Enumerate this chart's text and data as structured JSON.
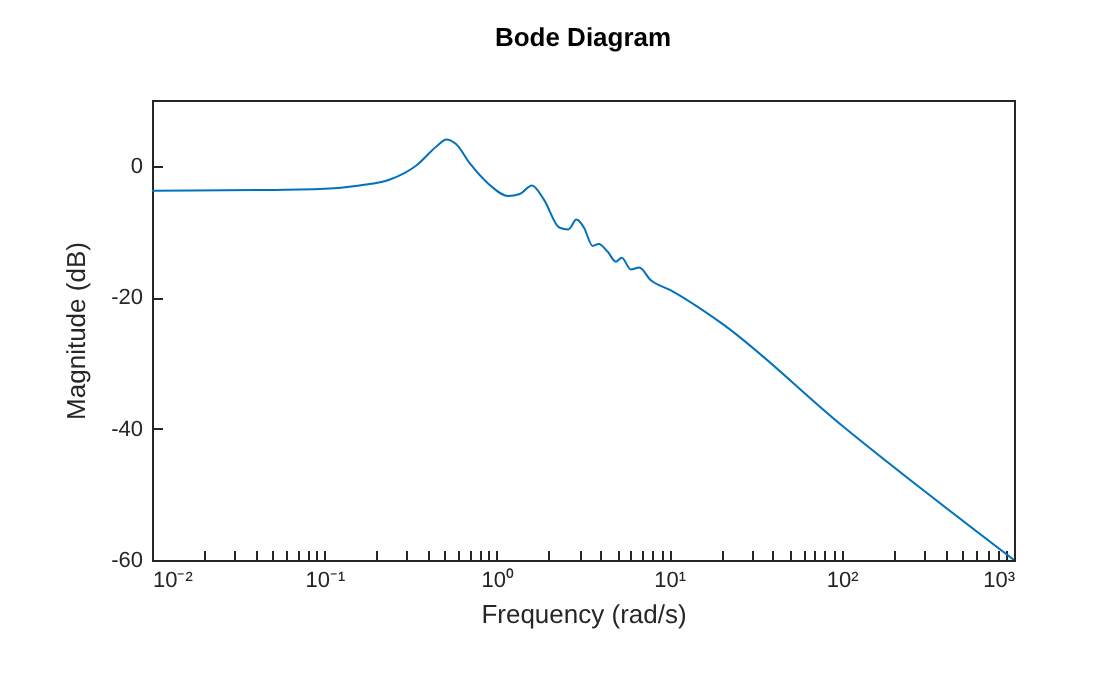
{
  "chart_data": {
    "type": "line",
    "title": "Bode Diagram",
    "xlabel": "Frequency (rad/s)",
    "ylabel": "Magnitude (dB)",
    "log": "x",
    "grid": false,
    "marker": "none",
    "line_style": "solid",
    "xlim": [
      0.01,
      1000
    ],
    "ylim": [
      -60,
      10
    ],
    "xticks": [
      {
        "value": 0.01,
        "label": "10⁻²"
      },
      {
        "value": 0.02,
        "label": null
      },
      {
        "value": 0.03,
        "label": null
      },
      {
        "value": 0.04,
        "label": null
      },
      {
        "value": 0.05,
        "label": null
      },
      {
        "value": 0.06,
        "label": null
      },
      {
        "value": 0.07,
        "label": null
      },
      {
        "value": 0.08,
        "label": null
      },
      {
        "value": 0.09,
        "label": null
      },
      {
        "value": 0.1,
        "label": "10⁻¹"
      },
      {
        "value": 0.2,
        "label": null
      },
      {
        "value": 0.3,
        "label": null
      },
      {
        "value": 0.4,
        "label": null
      },
      {
        "value": 0.5,
        "label": null
      },
      {
        "value": 0.6,
        "label": null
      },
      {
        "value": 0.7,
        "label": null
      },
      {
        "value": 0.8,
        "label": null
      },
      {
        "value": 0.9,
        "label": null
      },
      {
        "value": 1,
        "label": "10⁰"
      },
      {
        "value": 2,
        "label": null
      },
      {
        "value": 3,
        "label": null
      },
      {
        "value": 4,
        "label": null
      },
      {
        "value": 5,
        "label": null
      },
      {
        "value": 6,
        "label": null
      },
      {
        "value": 7,
        "label": null
      },
      {
        "value": 8,
        "label": null
      },
      {
        "value": 9,
        "label": null
      },
      {
        "value": 10,
        "label": "10¹"
      },
      {
        "value": 20,
        "label": null
      },
      {
        "value": 30,
        "label": null
      },
      {
        "value": 40,
        "label": null
      },
      {
        "value": 50,
        "label": null
      },
      {
        "value": 60,
        "label": null
      },
      {
        "value": 70,
        "label": null
      },
      {
        "value": 80,
        "label": null
      },
      {
        "value": 90,
        "label": null
      },
      {
        "value": 100,
        "label": "10²"
      },
      {
        "value": 200,
        "label": null
      },
      {
        "value": 300,
        "label": null
      },
      {
        "value": 400,
        "label": null
      },
      {
        "value": 500,
        "label": null
      },
      {
        "value": 600,
        "label": null
      },
      {
        "value": 700,
        "label": null
      },
      {
        "value": 800,
        "label": null
      },
      {
        "value": 900,
        "label": null
      },
      {
        "value": 1000,
        "label": "10³"
      }
    ],
    "yticks": [
      -60,
      -40,
      -20,
      0
    ],
    "series": [
      {
        "color": "#0072bd",
        "x": [
          0.01,
          0.043,
          0.1,
          0.16,
          0.24,
          0.34,
          0.45,
          0.51,
          0.58,
          0.7,
          0.89,
          1.16,
          1.36,
          1.6,
          1.88,
          2.3,
          2.6,
          2.9,
          3.2,
          3.6,
          3.9,
          4.4,
          4.9,
          5.3,
          6.0,
          6.7,
          7.8,
          10.1,
          19.7,
          100,
          1000
        ],
        "values": [
          -3.8,
          -3.7,
          -3.5,
          -3.0,
          -2.1,
          0,
          3,
          4,
          3.3,
          0.3,
          -2.7,
          -4.6,
          -4.3,
          -3.0,
          -5.2,
          -9.4,
          -9.7,
          -8.2,
          -9.4,
          -12.2,
          -11.9,
          -13.1,
          -14.6,
          -14.0,
          -15.8,
          -15.5,
          -17.4,
          -18.9,
          -23.8,
          -39.5,
          -60
        ]
      }
    ]
  }
}
